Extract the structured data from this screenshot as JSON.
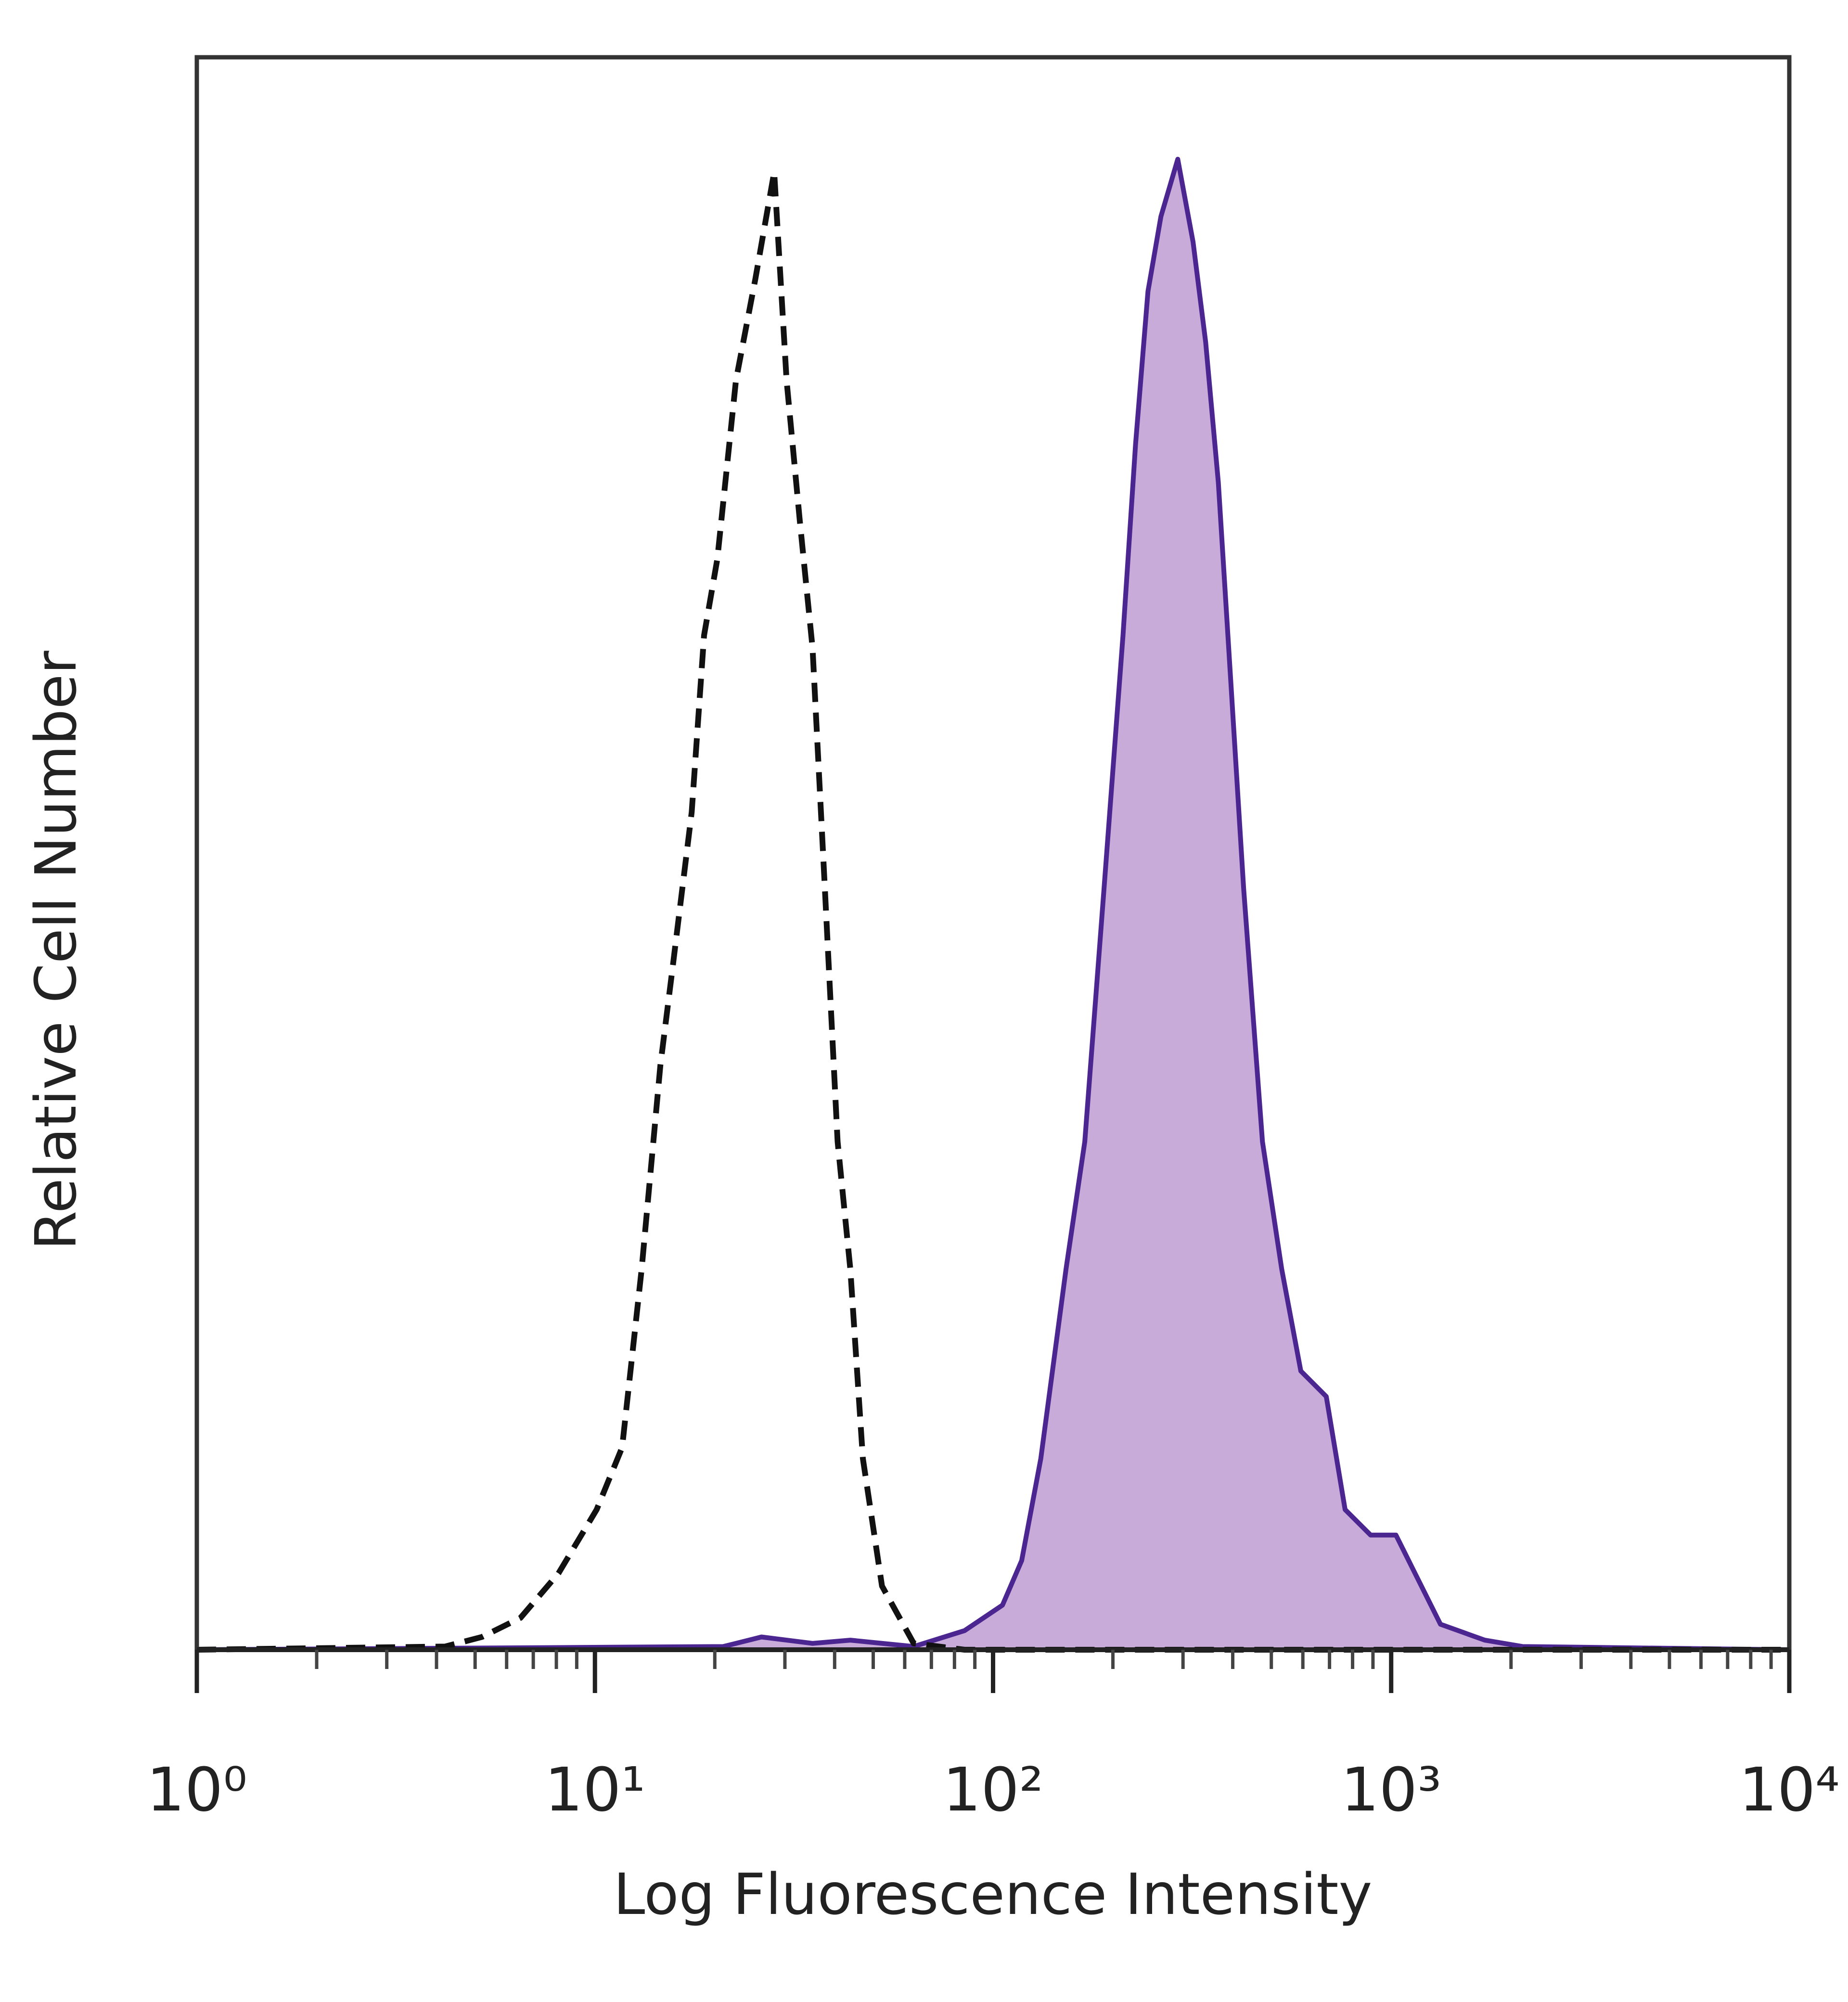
{
  "chart_data": {
    "type": "line",
    "xlabel": "Log Fluorescence Intensity",
    "ylabel": "Relative Cell Number",
    "xscale": "log",
    "xlim": [
      1,
      10000
    ],
    "ylim": [
      0,
      100
    ],
    "xticks": [
      {
        "value": 1,
        "label": "10⁰"
      },
      {
        "value": 10,
        "label": "10¹"
      },
      {
        "value": 100,
        "label": "10²"
      },
      {
        "value": 1000,
        "label": "10³"
      },
      {
        "value": 10000,
        "label": "10⁴"
      }
    ],
    "xminorticks": [
      2,
      3,
      4,
      5,
      6,
      7,
      8,
      9,
      20,
      30,
      40,
      50,
      60,
      70,
      80,
      90,
      200,
      300,
      400,
      500,
      600,
      700,
      800,
      900,
      2000,
      3000,
      4000,
      5000,
      6000,
      7000,
      8000,
      9000
    ],
    "series": [
      {
        "color": "#4b2590",
        "fill": "#c9abd9",
        "dash": false,
        "x": [
          1,
          21.0,
          26.2,
          35.2,
          43.8,
          63.2,
          84.8,
          105.6,
          118,
          131.8,
          152.5,
          170,
          190,
          212,
          228,
          245,
          264,
          291,
          318,
          342,
          368,
          396,
          426,
          475,
          531,
          593,
          687,
          766,
          888,
          1028,
          1148,
          1330,
          1718,
          2141,
          10000
        ],
        "values": [
          0,
          0.2,
          0.8,
          0.4,
          0.6,
          0.2,
          1.2,
          2.8,
          5.6,
          12.0,
          23.9,
          31.9,
          47.8,
          63.7,
          75.7,
          85.3,
          90.0,
          93.6,
          88.4,
          82.1,
          73.3,
          60.6,
          47.8,
          31.9,
          23.9,
          17.5,
          15.9,
          8.8,
          7.2,
          7.2,
          4.8,
          1.6,
          0.6,
          0.2,
          0
        ]
      },
      {
        "color": "#111111",
        "fill": "none",
        "dash": true,
        "x": [
          1,
          4.2,
          5.2,
          6.5,
          8.1,
          10.1,
          11.7,
          13.1,
          14.6,
          15.7,
          17.5,
          18.8,
          20.3,
          22.6,
          25.3,
          28.2,
          30.3,
          32.7,
          35.2,
          37.8,
          40.7,
          43.8,
          47.1,
          52.6,
          63.2,
          84.8,
          10000
        ],
        "values": [
          0,
          0.2,
          0.8,
          2.0,
          4.8,
          8.8,
          12.7,
          23.9,
          36.7,
          43.0,
          52.6,
          63.7,
          68.5,
          79.7,
          86.1,
          92.8,
          79.7,
          70.9,
          62.9,
          47.8,
          31.9,
          23.9,
          12.0,
          4.0,
          0.4,
          0,
          0
        ]
      }
    ]
  }
}
